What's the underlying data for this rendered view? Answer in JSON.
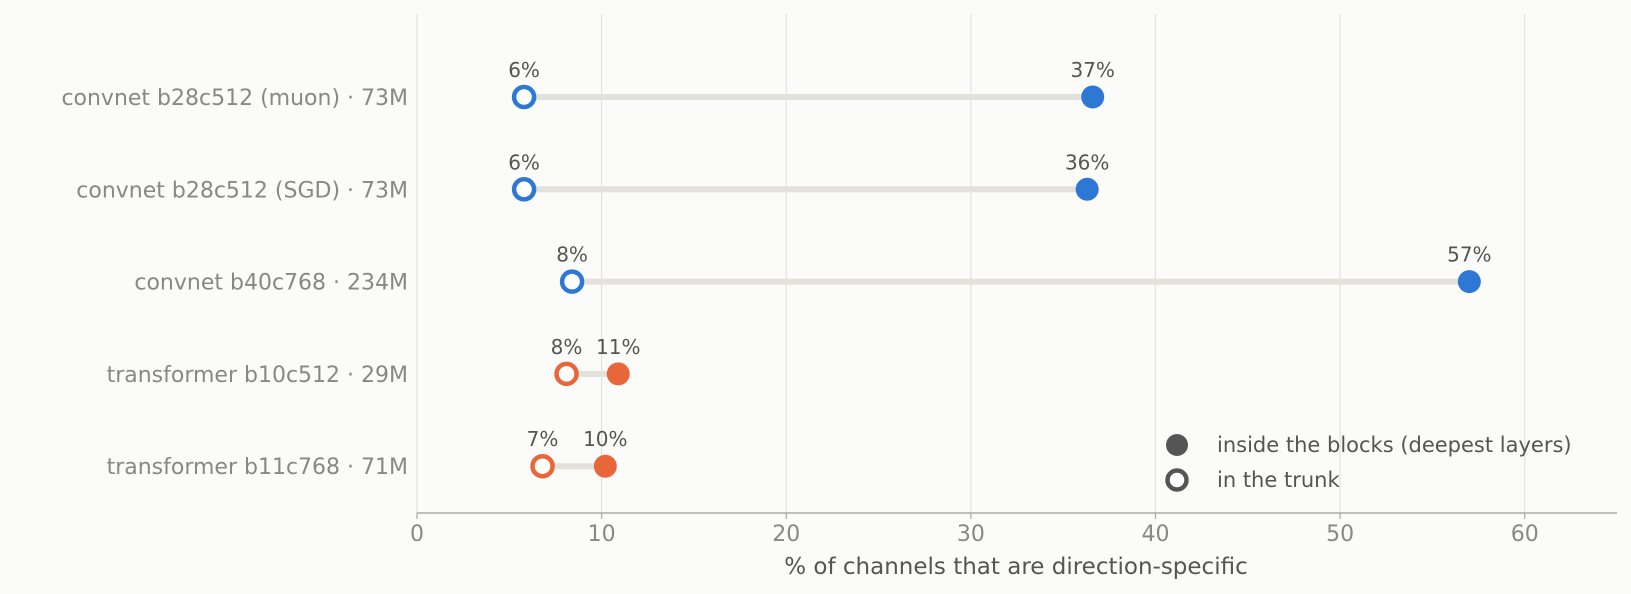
{
  "chart_data": {
    "type": "dumbbell",
    "xlabel": "% of channels that are direction-specific",
    "xlim": [
      0,
      65
    ],
    "xticks": [
      0,
      10,
      20,
      30,
      40,
      50,
      60
    ],
    "grid": "vertical",
    "legend_position": "bottom-right",
    "rows": [
      {
        "label": "convnet b28c512 (muon) · 73M",
        "trunk": 5.8,
        "blocks": 36.6,
        "trunk_label": "6%",
        "blocks_label": "37%",
        "family": "convnet"
      },
      {
        "label": "convnet b28c512 (SGD) · 73M",
        "trunk": 5.8,
        "blocks": 36.3,
        "trunk_label": "6%",
        "blocks_label": "36%",
        "family": "convnet"
      },
      {
        "label": "convnet b40c768 · 234M",
        "trunk": 8.4,
        "blocks": 57.0,
        "trunk_label": "8%",
        "blocks_label": "57%",
        "family": "convnet"
      },
      {
        "label": "transformer b10c512 · 29M",
        "trunk": 8.1,
        "blocks": 10.9,
        "trunk_label": "8%",
        "blocks_label": "11%",
        "family": "transformer"
      },
      {
        "label": "transformer b11c768 · 71M",
        "trunk": 6.8,
        "blocks": 10.2,
        "trunk_label": "7%",
        "blocks_label": "10%",
        "family": "transformer"
      }
    ],
    "legend": [
      {
        "label": "inside the blocks (deepest layers)",
        "marker": "filled"
      },
      {
        "label": "in the trunk",
        "marker": "hollow"
      }
    ],
    "colors": {
      "convnet": "#2c78d4",
      "transformer": "#e8673a",
      "connector": "#e2e1db",
      "legend_marker": "#555555",
      "grid": "#e2e2e2",
      "axis": "#aaaaaa"
    }
  }
}
